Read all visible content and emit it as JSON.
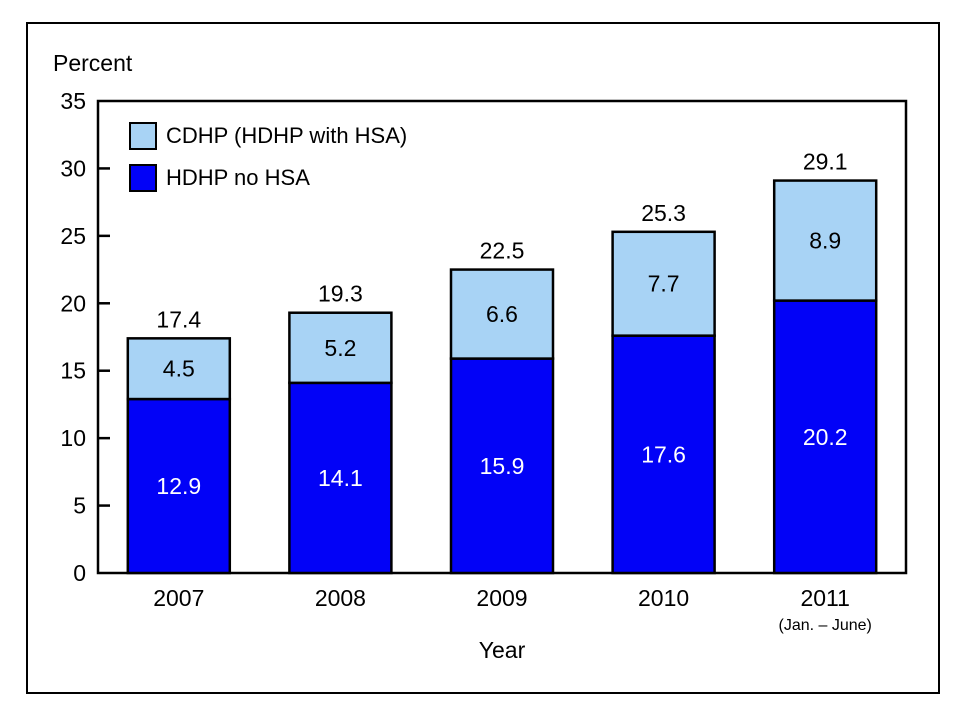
{
  "chart_data": {
    "type": "bar",
    "stacked": true,
    "title": "",
    "ylabel": "Percent",
    "xlabel": "Year",
    "categories": [
      "2007",
      "2008",
      "2009",
      "2010",
      "2011"
    ],
    "category_sublabels": [
      "",
      "",
      "",
      "",
      "(Jan. – June)"
    ],
    "series": [
      {
        "name": "HDHP no HSA",
        "color": "#0202f7",
        "label_color": "#ffffff",
        "values": [
          12.9,
          14.1,
          15.9,
          17.6,
          20.2
        ]
      },
      {
        "name": "CDHP (HDHP with HSA)",
        "color": "#a8d3f5",
        "label_color": "#000000",
        "values": [
          4.5,
          5.2,
          6.6,
          7.7,
          8.9
        ]
      }
    ],
    "totals": [
      17.4,
      19.3,
      22.5,
      25.3,
      29.1
    ],
    "ylim": [
      0,
      35
    ],
    "yticks": [
      0,
      5,
      10,
      15,
      20,
      25,
      30,
      35
    ],
    "grid": false,
    "legend": {
      "position": "top-left-inside",
      "items": [
        {
          "label": "CDHP (HDHP with HSA)",
          "color": "#a8d3f5"
        },
        {
          "label": "HDHP no HSA",
          "color": "#0202f7"
        }
      ]
    },
    "axis_color": "#000000",
    "bar_outline_color": "#000000"
  }
}
